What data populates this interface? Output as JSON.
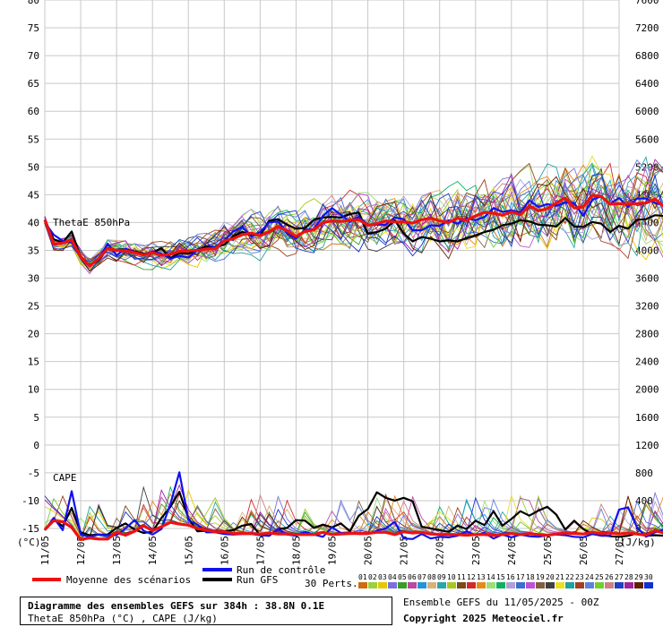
{
  "chart_data": {
    "type": "line",
    "left_axis": {
      "unit": "(°C)",
      "min": -15,
      "max": 80,
      "ticks": [
        80,
        75,
        70,
        65,
        60,
        55,
        50,
        45,
        40,
        35,
        30,
        25,
        20,
        15,
        10,
        5,
        0,
        -5,
        -10,
        -15
      ]
    },
    "right_axis": {
      "unit": "(J/kg)",
      "min": 0,
      "max": 7600,
      "ticks": [
        7600,
        7200,
        6800,
        6400,
        6000,
        5600,
        5200,
        4800,
        4400,
        4000,
        3600,
        3200,
        2800,
        2400,
        2000,
        1600,
        1200,
        800,
        400,
        0
      ]
    },
    "x_ticks": [
      "11/05",
      "12/05",
      "13/05",
      "14/05",
      "15/05",
      "16/05",
      "17/05",
      "18/05",
      "19/05",
      "20/05",
      "21/05",
      "22/05",
      "23/05",
      "24/05",
      "25/05",
      "26/05",
      "27/05"
    ],
    "grid": true,
    "panel_labels": {
      "thetae": "ThetaE 850hPa",
      "cape": "CAPE"
    },
    "steps_per_day": 4,
    "series": [
      {
        "name": "Moyenne des scénarios",
        "color": "#ee1111",
        "thetae": [
          40.5,
          36.1,
          36.3,
          36.9,
          33.8,
          32.2,
          33.5,
          35.3,
          35,
          34.9,
          34.6,
          34.2,
          34.6,
          34.1,
          34.3,
          34.8,
          34.9,
          35,
          35.2,
          35.3,
          36.7,
          37.1,
          37.8,
          38.1,
          37.6,
          38.4,
          39.3,
          38.5,
          37.5,
          38.4,
          38.7,
          40,
          40.3,
          40.2,
          40.4,
          40.5,
          39.5,
          39.8,
          40.3,
          40.1,
          40.1,
          39.9,
          40.5,
          40.8,
          40.3,
          40,
          40.8,
          40.4,
          41.2,
          41.8,
          41.7,
          41.3,
          41.9,
          41.4,
          43,
          42.1,
          42.5,
          43.5,
          44.4,
          42.6,
          42.8,
          44.9,
          44.7,
          43.3,
          43.4,
          43.3,
          43.4,
          43.5,
          44.2,
          42.9,
          43.9,
          44.7,
          44.6,
          43.1,
          44.9,
          43.6,
          42.8,
          45,
          42.2,
          44,
          43.7,
          44.6,
          44,
          42.6,
          43.7
        ],
        "cape": [
          -15.2,
          -13.6,
          -13.8,
          -14.8,
          -17,
          -16.7,
          -16.9,
          -16.9,
          -15.7,
          -16.2,
          -15.5,
          -14.5,
          -15.4,
          -14.7,
          -13.9,
          -14.2,
          -14.4,
          -15,
          -15.3,
          -15.6,
          -15.6,
          -15.9,
          -15.9,
          -15.9,
          -16,
          -15.8,
          -16,
          -16,
          -16.1,
          -16.1,
          -16.1,
          -15.7,
          -16.1,
          -16,
          -15.9,
          -15.9,
          -15.9,
          -15.7,
          -15.7,
          -16.1,
          -15.6,
          -15.8,
          -15.7,
          -16,
          -16.1,
          -16.1,
          -16.1,
          -16.2,
          -16.1,
          -16.1,
          -16.2,
          -16.1,
          -15.9,
          -16.1,
          -15.9,
          -16.1,
          -16.2,
          -16,
          -15.8,
          -15.9,
          -16,
          -15.7,
          -15.9,
          -15.8,
          -16,
          -15.8,
          -16,
          -16.2,
          -15.4,
          -15.8,
          -15.6,
          -15.6,
          -15.9,
          -15.5,
          -15.6,
          -15.5,
          -15.8,
          -16,
          -15.5,
          -15.9,
          -15.8,
          -15.7,
          -15.7,
          -15.8,
          -15.5
        ]
      },
      {
        "name": "Run de contrôle",
        "color": "#1111ee",
        "thetae": [
          40,
          37.8,
          36.7,
          36.4,
          33.7,
          32.4,
          33.3,
          36.2,
          34.1,
          35.3,
          34.7,
          34.1,
          34.8,
          34.4,
          33.5,
          34,
          33.7,
          35,
          35.4,
          35.6,
          36.8,
          38.4,
          39.2,
          37.5,
          38.3,
          40,
          40.2,
          38.1,
          37.1,
          38.7,
          38.8,
          41.2,
          42.6,
          41.4,
          40.1,
          41,
          39.6,
          39.6,
          39.6,
          40.9,
          40.6,
          38.6,
          38.6,
          39.5,
          39.4,
          40.4,
          39.8,
          40.8,
          40.4,
          41,
          42.6,
          41.9,
          42.2,
          41.8,
          44,
          42.8,
          43.3,
          43,
          43.6,
          43.5,
          41.2,
          44.1,
          44.7,
          43.4,
          44.4,
          42.8,
          44.3,
          44.3,
          43.5,
          43.1,
          44.6,
          44.3,
          45.7,
          45.6,
          48.2,
          47.5,
          44.8,
          44.6,
          46.2,
          44.5,
          44.7,
          46,
          47.5,
          45.6,
          48.7
        ],
        "cape": [
          -15.3,
          -13.1,
          -15.3,
          -8.3,
          -16.1,
          -16.5,
          -16.1,
          -16.2,
          -16.2,
          -15,
          -13.5,
          -15.4,
          -16.1,
          -15.1,
          -10.6,
          -4.9,
          -13.5,
          -14.3,
          -15.7,
          -15.7,
          -16,
          -16.1,
          -16,
          -16,
          -16.2,
          -16.3,
          -15.1,
          -16.1,
          -16.3,
          -15.6,
          -16.1,
          -16.5,
          -14.8,
          -15.8,
          -15.7,
          -16,
          -16,
          -15.4,
          -15,
          -13.8,
          -16.8,
          -16.9,
          -16,
          -16.8,
          -16.5,
          -16.6,
          -16.3,
          -15.5,
          -16.2,
          -15.8,
          -16.8,
          -16.1,
          -16.6,
          -16.1,
          -16.4,
          -16.5,
          -16.2,
          -16.1,
          -16.2,
          -16.5,
          -16.6,
          -16,
          -16.3,
          -16.3,
          -11.6,
          -11.2,
          -14.8,
          -16.5,
          -15.7,
          -15.2,
          -16.9,
          -16,
          -16.3,
          -16.4,
          -17,
          -16.5,
          -16.7,
          -16.5,
          -16.5,
          -16.8,
          -16.6,
          -16.1,
          -16.2,
          -16.9,
          -16.2
        ]
      },
      {
        "name": "Run GFS",
        "color": "#000000",
        "thetae": [
          40.3,
          37,
          36.4,
          38.4,
          33.7,
          32.3,
          33.2,
          35.4,
          35.1,
          35.2,
          34.8,
          34.4,
          34.6,
          35.4,
          33.6,
          34.5,
          34.4,
          35.1,
          35.7,
          35.6,
          36,
          37.5,
          38.3,
          37.9,
          37.7,
          40.3,
          40.6,
          39.6,
          38.9,
          39,
          40.5,
          40.9,
          41,
          40.9,
          41.5,
          41.8,
          38,
          38.3,
          38.9,
          40.4,
          38,
          36.6,
          37.4,
          37.1,
          36.6,
          36.8,
          36.6,
          37.2,
          37.7,
          38.3,
          38.7,
          39.5,
          39.8,
          40.4,
          40.2,
          39.6,
          39.5,
          39.3,
          40.8,
          39.3,
          39.2,
          40.1,
          39.8,
          38.3,
          39.4,
          38.9,
          40.5,
          40.6,
          41.3,
          41.2,
          42.4,
          41.6,
          42.8,
          43.1,
          41,
          42.6,
          42.5,
          42.3,
          40.3,
          39.7,
          41,
          40.4,
          44.4,
          42.8,
          45.2
        ],
        "cape": [
          -15.3,
          -13.4,
          -14.6,
          -11.3,
          -15.7,
          -16.2,
          -16.1,
          -16.1,
          -14.9,
          -14.1,
          -15.2,
          -15.8,
          -15.6,
          -13.1,
          -11.1,
          -8.4,
          -13.2,
          -15.5,
          -15.4,
          -15.4,
          -15.5,
          -15.3,
          -14.5,
          -14.2,
          -16.2,
          -16.3,
          -15.1,
          -14.9,
          -13.5,
          -13.6,
          -14.9,
          -14.3,
          -14.8,
          -14.1,
          -15.5,
          -12.7,
          -11.5,
          -8.5,
          -9.5,
          -10,
          -9.5,
          -10.1,
          -14.7,
          -15,
          -15.3,
          -15.6,
          -14.5,
          -15.1,
          -13.6,
          -14.4,
          -11.9,
          -14.5,
          -13.3,
          -11.9,
          -12.7,
          -11.8,
          -11.1,
          -12.5,
          -15.2,
          -13.6,
          -15.1,
          -16,
          -16.1,
          -16.4,
          -16.5,
          -16.3,
          -15.9,
          -16.3,
          -16.2,
          -16.3,
          -16.4,
          -16.1,
          -16.3,
          -16.6,
          -16.6,
          -16.2,
          -16.6,
          -16.6,
          -16.6,
          -16.8,
          -16.6,
          -16.1,
          -15.7,
          -16.2,
          -15.8
        ]
      }
    ],
    "perturbations": {
      "label": "30 Perts.",
      "count": 30,
      "colors": [
        "#cc6b12",
        "#9bd03a",
        "#e6c800",
        "#7b6fe0",
        "#3a9b2a",
        "#b84aa0",
        "#1f95d8",
        "#d8b27a",
        "#2aa6a6",
        "#a8c820",
        "#7a4a1a",
        "#d22a2a",
        "#e88a1a",
        "#9adf7a",
        "#10b060",
        "#b0a0d8",
        "#3a6fd0",
        "#c050d8",
        "#806040",
        "#404040",
        "#e8e020",
        "#20a0a0",
        "#a04020",
        "#6080e0",
        "#70d030",
        "#d08080",
        "#2040c0",
        "#a020a0",
        "#602000",
        "#1030d0"
      ]
    }
  },
  "legend": {
    "mean_label": "Moyenne des scénarios",
    "control_label": "Run de contrôle",
    "gfs_label": "Run GFS",
    "perts_label": "30 Perts.",
    "pert_numbers": [
      "01",
      "02",
      "03",
      "04",
      "05",
      "06",
      "07",
      "08",
      "09",
      "10",
      "11",
      "12",
      "13",
      "14",
      "15",
      "16",
      "17",
      "18",
      "19",
      "20",
      "21",
      "22",
      "23",
      "24",
      "25",
      "26",
      "27",
      "28",
      "29",
      "30"
    ]
  },
  "footer": {
    "title": "Diagramme des ensembles GEFS sur 384h : 38.8N 0.1E",
    "subtitle": "ThetaE 850hPa (°C) , CAPE (J/kg)",
    "ensemble_date": "Ensemble GEFS du 11/05/2025 - 00Z",
    "copyright": "Copyright 2025 Meteociel.fr"
  }
}
